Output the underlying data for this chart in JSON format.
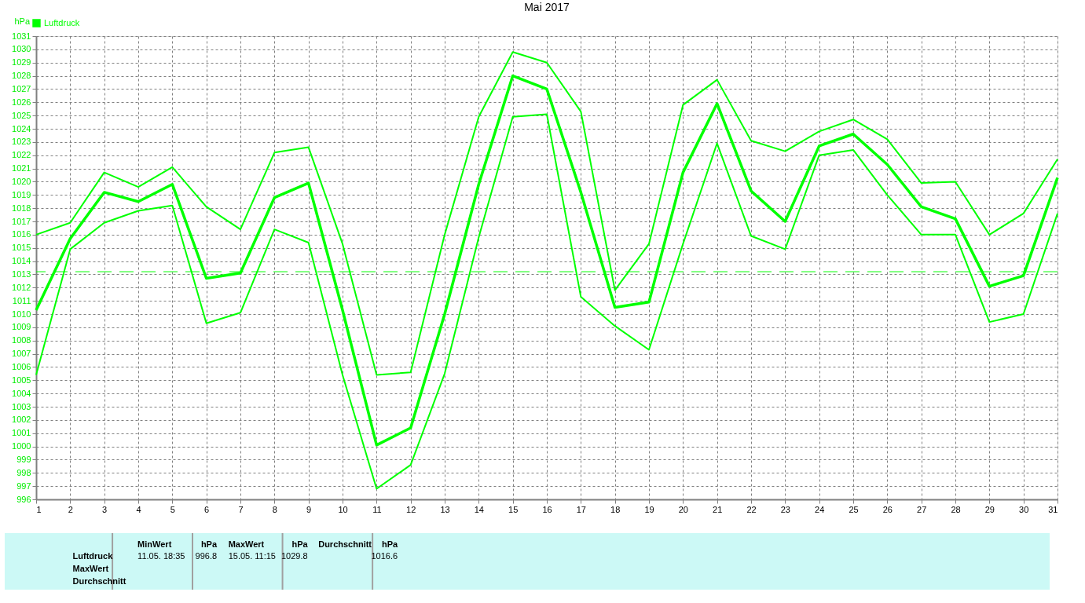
{
  "chart_data": {
    "type": "line",
    "title": "Mai 2017",
    "ylabel": "hPa",
    "x": [
      1,
      2,
      3,
      4,
      5,
      6,
      7,
      8,
      9,
      10,
      11,
      12,
      13,
      14,
      15,
      16,
      17,
      18,
      19,
      20,
      21,
      22,
      23,
      24,
      25,
      26,
      27,
      28,
      29,
      30,
      31
    ],
    "series": [
      {
        "name": "Luftdruck",
        "color": "#00ff00",
        "values": [
          1010.3,
          1015.7,
          1019.2,
          1018.5,
          1019.8,
          1012.7,
          1013.1,
          1018.8,
          1019.9,
          1010.3,
          1000.1,
          1001.4,
          1010.0,
          1019.8,
          1028.0,
          1027.0,
          1019.2,
          1010.5,
          1010.9,
          1020.7,
          1025.9,
          1019.3,
          1017.0,
          1022.7,
          1023.6,
          1021.3,
          1018.1,
          1017.2,
          1012.1,
          1012.9,
          1020.3
        ]
      },
      {
        "color": "#00ff00",
        "values": [
          1016.0,
          1016.9,
          1020.7,
          1019.6,
          1021.1,
          1018.1,
          1016.4,
          1022.2,
          1022.6,
          1015.3,
          1005.4,
          1005.6,
          1016.0,
          1024.9,
          1029.8,
          1029.0,
          1025.3,
          1011.8,
          1015.3,
          1025.8,
          1027.7,
          1023.1,
          1022.3,
          1023.8,
          1024.7,
          1023.2,
          1019.9,
          1020.0,
          1016.0,
          1017.6,
          1021.7
        ]
      },
      {
        "color": "#00ff00",
        "values": [
          1005.4,
          1014.9,
          1016.9,
          1017.8,
          1018.2,
          1009.3,
          1010.1,
          1016.4,
          1015.4,
          1005.4,
          996.8,
          998.6,
          1005.5,
          1015.8,
          1024.9,
          1025.1,
          1011.3,
          1009.1,
          1007.3,
          1015.3,
          1022.9,
          1015.9,
          1014.9,
          1022.0,
          1022.4,
          1019.0,
          1016.0,
          1016.0,
          1009.4,
          1010.0,
          1017.6
        ]
      }
    ],
    "xlim": [
      1,
      31
    ],
    "xticks": [
      1,
      2,
      3,
      4,
      5,
      6,
      7,
      8,
      9,
      10,
      11,
      12,
      13,
      14,
      15,
      16,
      17,
      18,
      19,
      20,
      21,
      22,
      23,
      24,
      25,
      26,
      27,
      28,
      29,
      30,
      31
    ],
    "ylim": [
      996,
      1031
    ],
    "yticks": [
      996,
      997,
      998,
      999,
      1000,
      1001,
      1002,
      1003,
      1004,
      1005,
      1006,
      1007,
      1008,
      1009,
      1010,
      1011,
      1012,
      1013,
      1014,
      1015,
      1016,
      1017,
      1018,
      1019,
      1020,
      1021,
      1022,
      1023,
      1024,
      1025,
      1026,
      1027,
      1028,
      1029,
      1030,
      1031
    ],
    "ref_lines": [
      {
        "axis": "y",
        "value": 1013.2,
        "color": "#00ff00",
        "line_style": "dashed"
      }
    ],
    "grid": true,
    "legend": "top left",
    "line_style": "solid",
    "marker": "none",
    "annotations": [
      "Luftdruck",
      "MaxWert",
      "Durchschnitt",
      "MinWert",
      "hPa",
      "11.05.  18:35",
      "996.8",
      "MaxWert",
      "hPa",
      "15.05.  11:15",
      "1029.8",
      "Durchschnitt",
      "hPa",
      "1016.6"
    ]
  }
}
